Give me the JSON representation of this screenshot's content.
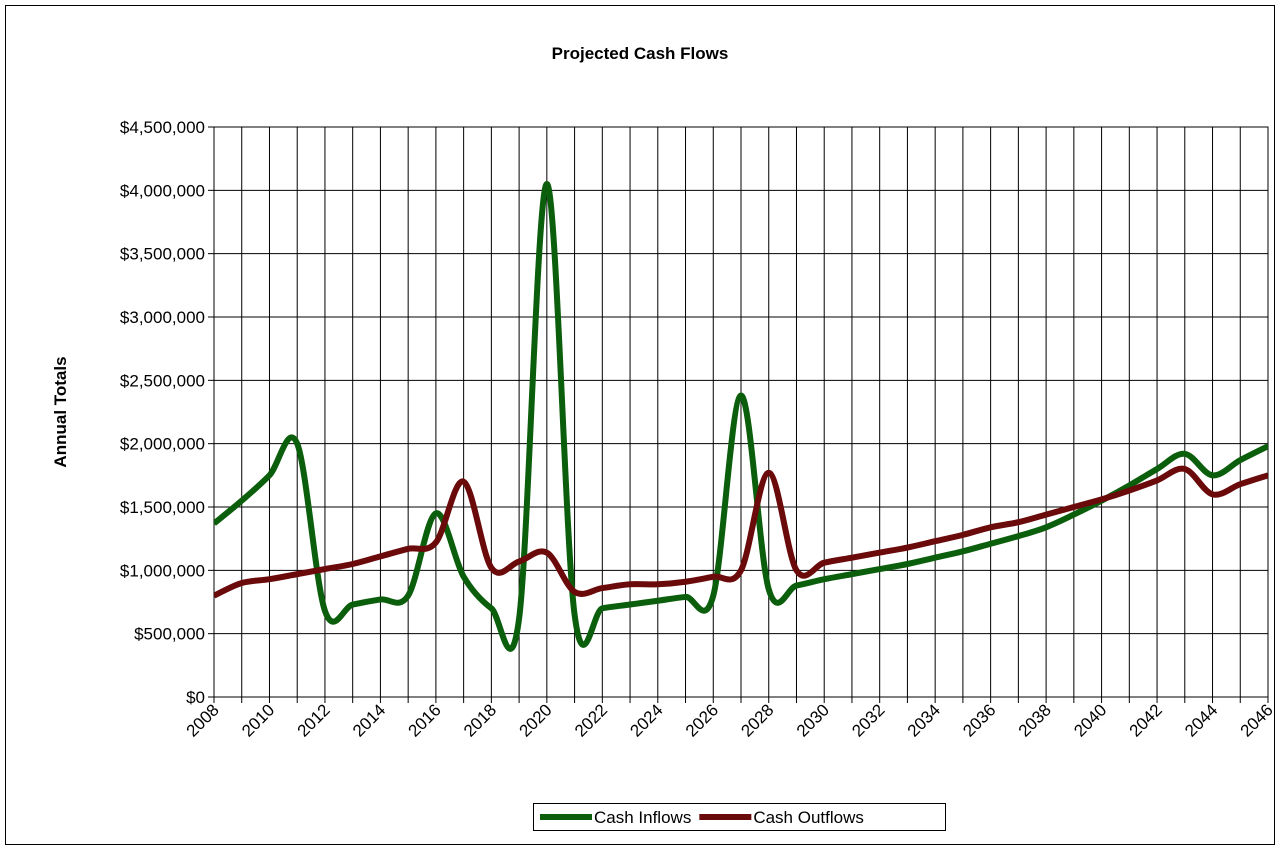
{
  "chart_data": {
    "type": "line",
    "title": "Projected Cash Flows",
    "y_label": "Annual Totals",
    "categories": [
      "2008",
      null,
      "2010",
      null,
      "2012",
      null,
      "2014",
      null,
      "2016",
      null,
      "2018",
      null,
      "2020",
      null,
      "2022",
      null,
      "2024",
      null,
      "2026",
      null,
      "2028",
      null,
      "2030",
      null,
      "2032",
      null,
      "2034",
      null,
      "2036",
      null,
      "2038",
      null,
      "2040",
      null,
      "2042",
      null,
      "2044",
      null,
      "2046"
    ],
    "series": [
      {
        "name": "Cash Inflows",
        "color": "#0b5e0b",
        "values": [
          1370000,
          1550000,
          1750000,
          2000000,
          680000,
          730000,
          770000,
          800000,
          1450000,
          950000,
          700000,
          620000,
          4050000,
          650000,
          700000,
          730000,
          760000,
          790000,
          800000,
          2380000,
          850000,
          880000,
          930000,
          970000,
          1010000,
          1050000,
          1100000,
          1150000,
          1210000,
          1270000,
          1340000,
          1440000,
          1550000,
          1670000,
          1800000,
          1920000,
          1750000,
          1870000,
          1980000
        ]
      },
      {
        "name": "Cash Outflows",
        "color": "#6b0a0a",
        "values": [
          800000,
          900000,
          930000,
          970000,
          1010000,
          1050000,
          1110000,
          1170000,
          1220000,
          1700000,
          1020000,
          1070000,
          1140000,
          830000,
          860000,
          890000,
          890000,
          910000,
          950000,
          1000000,
          1770000,
          1000000,
          1060000,
          1100000,
          1140000,
          1180000,
          1230000,
          1280000,
          1340000,
          1380000,
          1440000,
          1500000,
          1560000,
          1630000,
          1710000,
          1800000,
          1600000,
          1680000,
          1750000
        ]
      }
    ],
    "ylim": [
      0,
      4500000
    ],
    "yticks": [
      {
        "value": 0,
        "label": "$0"
      },
      {
        "value": 500000,
        "label": "$500,000"
      },
      {
        "value": 1000000,
        "label": "$1,000,000"
      },
      {
        "value": 1500000,
        "label": "$1,500,000"
      },
      {
        "value": 2000000,
        "label": "$2,000,000"
      },
      {
        "value": 2500000,
        "label": "$2,500,000"
      },
      {
        "value": 3000000,
        "label": "$3,000,000"
      },
      {
        "value": 3500000,
        "label": "$3,500,000"
      },
      {
        "value": 4000000,
        "label": "$4,000,000"
      },
      {
        "value": 4500000,
        "label": "$4,500,000"
      }
    ],
    "grid": true,
    "legend": "bottom"
  }
}
